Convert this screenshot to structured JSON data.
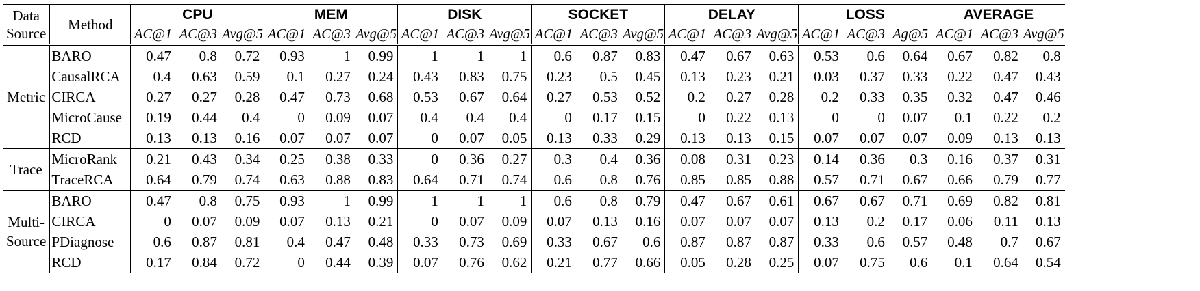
{
  "headers": {
    "data_source": "Data Source",
    "data_source_l1": "Data",
    "data_source_l2": "Source",
    "method": "Method",
    "groups": [
      "CPU",
      "MEM",
      "DISK",
      "SOCKET",
      "DELAY",
      "LOSS",
      "AVERAGE"
    ],
    "metrics": [
      [
        "AC@1",
        "AC@3",
        "Avg@5"
      ],
      [
        "AC@1",
        "AC@3",
        "Avg@5"
      ],
      [
        "AC@1",
        "AC@3",
        "Avg@5"
      ],
      [
        "AC@1",
        "AC@3",
        "Avg@5"
      ],
      [
        "AC@1",
        "AC@3",
        "Avg@5"
      ],
      [
        "AC@1",
        "AC@3",
        "Ag@5"
      ],
      [
        "AC@1",
        "AC@3",
        "Avg@5"
      ]
    ]
  },
  "sections": [
    {
      "label": "Metric",
      "label_lines": [
        "Metric"
      ],
      "rows": [
        {
          "method": "BARO",
          "values": [
            "0.47",
            "0.8",
            "0.72",
            "0.93",
            "1",
            "0.99",
            "1",
            "1",
            "1",
            "0.6",
            "0.87",
            "0.83",
            "0.47",
            "0.67",
            "0.63",
            "0.53",
            "0.6",
            "0.64",
            "0.67",
            "0.82",
            "0.8"
          ]
        },
        {
          "method": "CausalRCA",
          "values": [
            "0.4",
            "0.63",
            "0.59",
            "0.1",
            "0.27",
            "0.24",
            "0.43",
            "0.83",
            "0.75",
            "0.23",
            "0.5",
            "0.45",
            "0.13",
            "0.23",
            "0.21",
            "0.03",
            "0.37",
            "0.33",
            "0.22",
            "0.47",
            "0.43"
          ]
        },
        {
          "method": "CIRCA",
          "values": [
            "0.27",
            "0.27",
            "0.28",
            "0.47",
            "0.73",
            "0.68",
            "0.53",
            "0.67",
            "0.64",
            "0.27",
            "0.53",
            "0.52",
            "0.2",
            "0.27",
            "0.28",
            "0.2",
            "0.33",
            "0.35",
            "0.32",
            "0.47",
            "0.46"
          ]
        },
        {
          "method": "MicroCause",
          "values": [
            "0.19",
            "0.44",
            "0.4",
            "0",
            "0.09",
            "0.07",
            "0.4",
            "0.4",
            "0.4",
            "0",
            "0.17",
            "0.15",
            "0",
            "0.22",
            "0.13",
            "0",
            "0",
            "0.07",
            "0.1",
            "0.22",
            "0.2"
          ]
        },
        {
          "method": "RCD",
          "values": [
            "0.13",
            "0.13",
            "0.16",
            "0.07",
            "0.07",
            "0.07",
            "0",
            "0.07",
            "0.05",
            "0.13",
            "0.33",
            "0.29",
            "0.13",
            "0.13",
            "0.15",
            "0.07",
            "0.07",
            "0.07",
            "0.09",
            "0.13",
            "0.13"
          ]
        }
      ]
    },
    {
      "label": "Trace",
      "label_lines": [
        "Trace"
      ],
      "rows": [
        {
          "method": "MicroRank",
          "values": [
            "0.21",
            "0.43",
            "0.34",
            "0.25",
            "0.38",
            "0.33",
            "0",
            "0.36",
            "0.27",
            "0.3",
            "0.4",
            "0.36",
            "0.08",
            "0.31",
            "0.23",
            "0.14",
            "0.36",
            "0.3",
            "0.16",
            "0.37",
            "0.31"
          ]
        },
        {
          "method": "TraceRCA",
          "values": [
            "0.64",
            "0.79",
            "0.74",
            "0.63",
            "0.88",
            "0.83",
            "0.64",
            "0.71",
            "0.74",
            "0.6",
            "0.8",
            "0.76",
            "0.85",
            "0.85",
            "0.88",
            "0.57",
            "0.71",
            "0.67",
            "0.66",
            "0.79",
            "0.77"
          ]
        }
      ]
    },
    {
      "label": "Multi-Source",
      "label_lines": [
        "Multi-",
        "Source"
      ],
      "rows": [
        {
          "method": "BARO",
          "values": [
            "0.47",
            "0.8",
            "0.75",
            "0.93",
            "1",
            "0.99",
            "1",
            "1",
            "1",
            "0.6",
            "0.8",
            "0.79",
            "0.47",
            "0.67",
            "0.61",
            "0.67",
            "0.67",
            "0.71",
            "0.69",
            "0.82",
            "0.81"
          ]
        },
        {
          "method": "CIRCA",
          "values": [
            "0",
            "0.07",
            "0.09",
            "0.07",
            "0.13",
            "0.21",
            "0",
            "0.07",
            "0.09",
            "0.07",
            "0.13",
            "0.16",
            "0.07",
            "0.07",
            "0.07",
            "0.13",
            "0.2",
            "0.17",
            "0.06",
            "0.11",
            "0.13"
          ]
        },
        {
          "method": "PDiagnose",
          "values": [
            "0.6",
            "0.87",
            "0.81",
            "0.4",
            "0.47",
            "0.48",
            "0.33",
            "0.73",
            "0.69",
            "0.33",
            "0.67",
            "0.6",
            "0.87",
            "0.87",
            "0.87",
            "0.33",
            "0.6",
            "0.57",
            "0.48",
            "0.7",
            "0.67"
          ]
        },
        {
          "method": "RCD",
          "values": [
            "0.17",
            "0.84",
            "0.72",
            "0",
            "0.44",
            "0.39",
            "0.07",
            "0.76",
            "0.62",
            "0.21",
            "0.77",
            "0.66",
            "0.05",
            "0.28",
            "0.25",
            "0.07",
            "0.75",
            "0.6",
            "0.1",
            "0.64",
            "0.54"
          ]
        }
      ]
    }
  ]
}
